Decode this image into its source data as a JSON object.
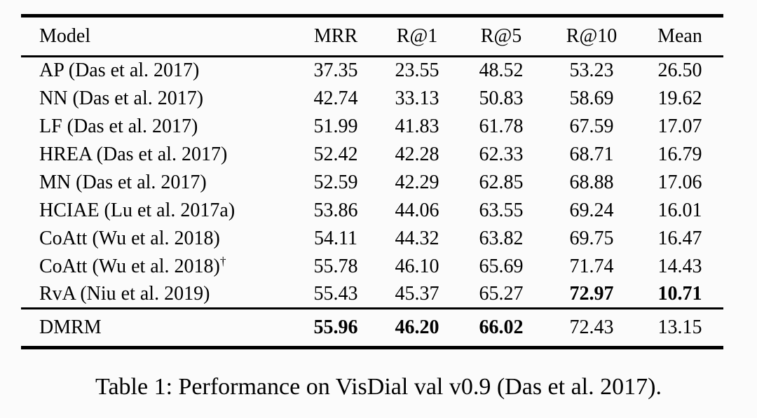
{
  "chart_data": {
    "type": "table",
    "columns": [
      "Model",
      "MRR",
      "R@1",
      "R@5",
      "R@10",
      "Mean"
    ],
    "rows": [
      {
        "model": "AP (Das et al. 2017)",
        "values": [
          "37.35",
          "23.55",
          "48.52",
          "53.23",
          "26.50"
        ]
      },
      {
        "model": "NN (Das et al. 2017)",
        "values": [
          "42.74",
          "33.13",
          "50.83",
          "58.69",
          "19.62"
        ]
      },
      {
        "model": "LF (Das et al. 2017)",
        "values": [
          "51.99",
          "41.83",
          "61.78",
          "67.59",
          "17.07"
        ]
      },
      {
        "model": "HREA (Das et al. 2017)",
        "values": [
          "52.42",
          "42.28",
          "62.33",
          "68.71",
          "16.79"
        ]
      },
      {
        "model": "MN (Das et al. 2017)",
        "values": [
          "52.59",
          "42.29",
          "62.85",
          "68.88",
          "17.06"
        ]
      },
      {
        "model": "HCIAE (Lu et al. 2017a)",
        "values": [
          "53.86",
          "44.06",
          "63.55",
          "69.24",
          "16.01"
        ]
      },
      {
        "model": "CoAtt (Wu et al. 2018)",
        "values": [
          "54.11",
          "44.32",
          "63.82",
          "69.75",
          "16.47"
        ]
      },
      {
        "model": "CoAtt (Wu et al. 2018)",
        "sup": "†",
        "values": [
          "55.78",
          "46.10",
          "65.69",
          "71.74",
          "14.43"
        ]
      },
      {
        "model": "RvA (Niu et al. 2019)",
        "values": [
          "55.43",
          "45.37",
          "65.27",
          "72.97",
          "10.71"
        ]
      }
    ],
    "footer": {
      "model": "DMRM",
      "values": [
        "55.96",
        "46.20",
        "66.02",
        "72.43",
        "13.15"
      ]
    }
  },
  "caption": "Table 1: Performance on VisDial val v0.9 (Das et al. 2017)."
}
